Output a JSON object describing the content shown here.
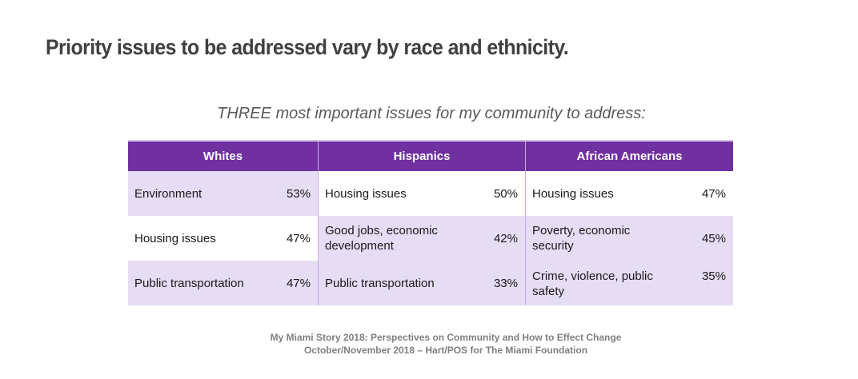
{
  "title": "Priority issues to be addressed vary by race and ethnicity.",
  "subtitle": "THREE most important issues for my community to address:",
  "colors": {
    "header": "#7030a0",
    "shade": "#e6dcf3",
    "title": "#404040"
  },
  "table": {
    "columns": [
      {
        "header": "Whites",
        "rows": [
          {
            "issue": "Environment",
            "percent": "53%"
          },
          {
            "issue": "Housing issues",
            "percent": "47%"
          },
          {
            "issue": "Public transportation",
            "percent": "47%"
          }
        ]
      },
      {
        "header": "Hispanics",
        "rows": [
          {
            "issue": "Housing issues",
            "percent": "50%"
          },
          {
            "issue": "Good jobs, economic development",
            "percent": "42%"
          },
          {
            "issue": "Public transportation",
            "percent": "33%"
          }
        ]
      },
      {
        "header": "African Americans",
        "rows": [
          {
            "issue": "Housing issues",
            "percent": "47%"
          },
          {
            "issue": "Poverty, economic security",
            "percent": "45%"
          },
          {
            "issue": "Crime, violence, public safety",
            "percent": "35%"
          }
        ]
      }
    ]
  },
  "footer": {
    "line1": "My Miami Story 2018:  Perspectives on Community and How to Effect Change",
    "line2": "October/November 2018 – Hart/POS for The Miami Foundation"
  }
}
